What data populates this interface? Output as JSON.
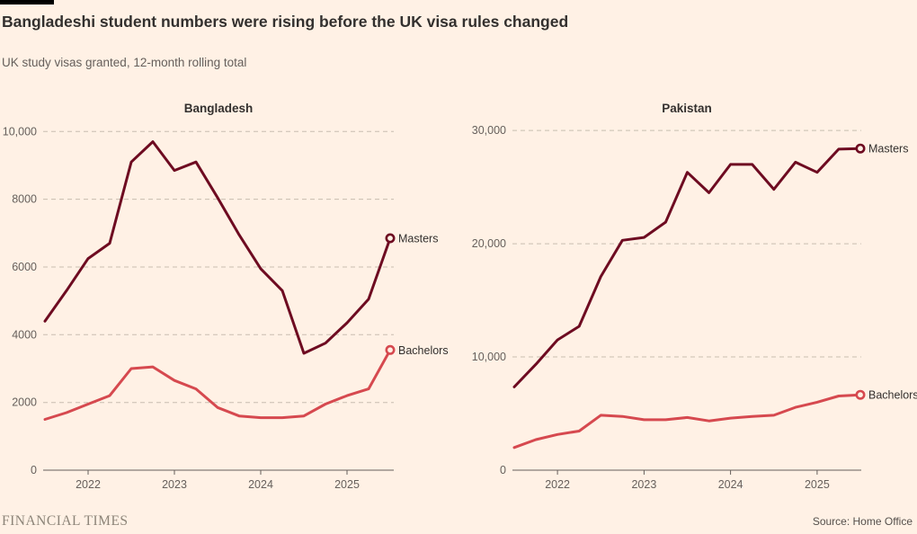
{
  "header": {
    "title": "Bangladeshi student numbers were rising before the UK visa rules changed",
    "subtitle": "UK study visas granted, 12-month rolling total"
  },
  "footer": {
    "brand": "FINANCIAL TIMES",
    "source": "Source: Home Office"
  },
  "colors": {
    "background": "#fff1e5",
    "masters": "#6e0b21",
    "bachelors": "#d6494f",
    "text_dark": "#33302e",
    "text_muted": "#66605c",
    "gridline": "#c8beb0",
    "axis": "#66605c",
    "top_bar": "#000000"
  },
  "chart_data": [
    {
      "type": "line",
      "title": "Bangladesh",
      "grid": true,
      "legend_position": "end-of-line",
      "xlim": [
        2021.5,
        2025.5
      ],
      "ylim": [
        0,
        10300
      ],
      "x": [
        2021.5,
        2021.75,
        2022,
        2022.25,
        2022.5,
        2022.75,
        2023,
        2023.25,
        2023.5,
        2023.75,
        2024,
        2024.25,
        2024.5,
        2024.75,
        2025,
        2025.25,
        2025.5
      ],
      "yticks": [
        {
          "value": 0,
          "label": "0"
        },
        {
          "value": 2000,
          "label": "2000"
        },
        {
          "value": 4000,
          "label": "4000"
        },
        {
          "value": 6000,
          "label": "6000"
        },
        {
          "value": 8000,
          "label": "8000"
        },
        {
          "value": 10000,
          "label": "10,000"
        }
      ],
      "xticks": [
        {
          "value": 2022,
          "label": "2022"
        },
        {
          "value": 2023,
          "label": "2023"
        },
        {
          "value": 2024,
          "label": "2024"
        },
        {
          "value": 2025,
          "label": "2025"
        }
      ],
      "series": [
        {
          "name": "Masters",
          "color_key": "masters",
          "values": [
            4400,
            5300,
            6250,
            6700,
            9100,
            9700,
            8850,
            9100,
            8050,
            6950,
            5950,
            5300,
            3450,
            3750,
            4350,
            5050,
            6850
          ]
        },
        {
          "name": "Bachelors",
          "color_key": "bachelors",
          "values": [
            1500,
            1700,
            1950,
            2200,
            3000,
            3050,
            2650,
            2400,
            1850,
            1600,
            1550,
            1550,
            1600,
            1950,
            2200,
            2400,
            3550
          ]
        }
      ]
    },
    {
      "type": "line",
      "title": "Pakistan",
      "grid": true,
      "legend_position": "end-of-line",
      "xlim": [
        2021.5,
        2025.5
      ],
      "ylim": [
        0,
        30800
      ],
      "x": [
        2021.5,
        2021.75,
        2022,
        2022.25,
        2022.5,
        2022.75,
        2023,
        2023.25,
        2023.5,
        2023.75,
        2024,
        2024.25,
        2024.5,
        2024.75,
        2025,
        2025.25,
        2025.5
      ],
      "yticks": [
        {
          "value": 0,
          "label": "0"
        },
        {
          "value": 10000,
          "label": "10,000"
        },
        {
          "value": 20000,
          "label": "20,000"
        },
        {
          "value": 30000,
          "label": "30,000"
        }
      ],
      "xticks": [
        {
          "value": 2022,
          "label": "2022"
        },
        {
          "value": 2023,
          "label": "2023"
        },
        {
          "value": 2024,
          "label": "2024"
        },
        {
          "value": 2025,
          "label": "2025"
        }
      ],
      "series": [
        {
          "name": "Masters",
          "color_key": "masters",
          "values": [
            7350,
            9350,
            11500,
            12700,
            17100,
            20300,
            20550,
            21900,
            26300,
            24500,
            27000,
            27000,
            24800,
            27200,
            26300,
            28350,
            28400
          ]
        },
        {
          "name": "Bachelors",
          "color_key": "bachelors",
          "values": [
            2000,
            2700,
            3150,
            3450,
            4850,
            4750,
            4450,
            4450,
            4650,
            4350,
            4600,
            4750,
            4850,
            5550,
            6000,
            6550,
            6650
          ]
        }
      ]
    }
  ]
}
